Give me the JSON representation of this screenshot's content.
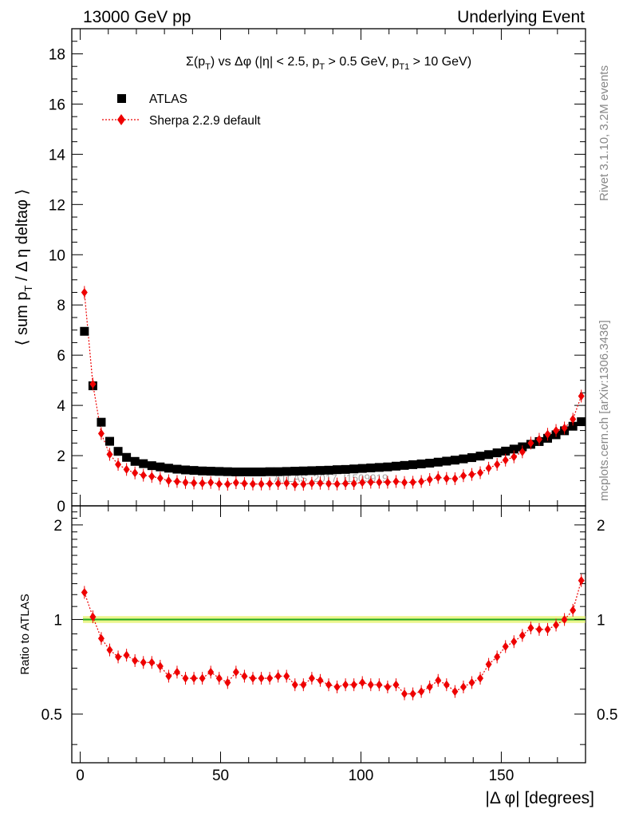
{
  "header": {
    "left_label": "13000 GeV pp",
    "right_label": "Underlying Event"
  },
  "side_labels": {
    "rivet": "Rivet 3.1.10,  3.2M events",
    "mcplots": "mcplots.cern.ch [arXiv:1306.3436]"
  },
  "watermark": "ATLAS_2017_I1509919",
  "colors": {
    "data_marker": "#000000",
    "mc_marker": "#ee0000",
    "band_fill": "#ecf58c",
    "band_line": "#22aa22"
  },
  "chart_data": [
    {
      "type": "scatter",
      "title": "Σ(pT) vs Δφ (|η| < 2.5, pT > 0.5 GeV, pT1 > 10 GeV)",
      "title_parts": {
        "a": "Σ(p",
        "a_sub": "T",
        "b": ") vs Δφ (|η| < 2.5, p",
        "b_sub": "T",
        "c": " > 0.5 GeV, p",
        "c_sub": "T1",
        "d": " > 10 GeV)"
      },
      "ylabel_parts": {
        "a": "⟨ sum p",
        "a_sub": "T",
        "b": " / Δ η deltaφ ⟩"
      },
      "xlabel": "",
      "xlim": [
        -3,
        180
      ],
      "ylim": [
        0,
        19
      ],
      "yticks": [
        0,
        2,
        4,
        6,
        8,
        10,
        12,
        14,
        16,
        18
      ],
      "ytick_labels": [
        "0",
        "2",
        "4",
        "6",
        "8",
        "10",
        "12",
        "14",
        "16",
        "18"
      ],
      "legend_position": "top-left",
      "series": [
        {
          "name": "ATLAS",
          "marker": "square",
          "x": [
            1.5,
            4.5,
            7.5,
            10.5,
            13.5,
            16.5,
            19.5,
            22.5,
            25.5,
            28.5,
            31.5,
            34.5,
            37.5,
            40.5,
            43.5,
            46.5,
            49.5,
            52.5,
            55.5,
            58.5,
            61.5,
            64.5,
            67.5,
            70.5,
            73.5,
            76.5,
            79.5,
            82.5,
            85.5,
            88.5,
            91.5,
            94.5,
            97.5,
            100.5,
            103.5,
            106.5,
            109.5,
            112.5,
            115.5,
            118.5,
            121.5,
            124.5,
            127.5,
            130.5,
            133.5,
            136.5,
            139.5,
            142.5,
            145.5,
            148.5,
            151.5,
            154.5,
            157.5,
            160.5,
            163.5,
            166.5,
            169.5,
            172.5,
            175.5,
            178.5
          ],
          "y": [
            6.95,
            4.78,
            3.33,
            2.57,
            2.17,
            1.93,
            1.77,
            1.68,
            1.6,
            1.55,
            1.5,
            1.46,
            1.43,
            1.41,
            1.39,
            1.38,
            1.37,
            1.36,
            1.35,
            1.35,
            1.35,
            1.35,
            1.36,
            1.36,
            1.37,
            1.38,
            1.39,
            1.4,
            1.41,
            1.42,
            1.44,
            1.45,
            1.47,
            1.49,
            1.51,
            1.53,
            1.55,
            1.58,
            1.61,
            1.64,
            1.67,
            1.7,
            1.74,
            1.78,
            1.82,
            1.87,
            1.92,
            1.98,
            2.04,
            2.11,
            2.18,
            2.26,
            2.35,
            2.45,
            2.56,
            2.69,
            2.83,
            2.99,
            3.17,
            3.35
          ]
        },
        {
          "name": "Sherpa 2.2.9 default",
          "marker": "diamond",
          "line": "dotted",
          "x": [
            1.5,
            4.5,
            7.5,
            10.5,
            13.5,
            16.5,
            19.5,
            22.5,
            25.5,
            28.5,
            31.5,
            34.5,
            37.5,
            40.5,
            43.5,
            46.5,
            49.5,
            52.5,
            55.5,
            58.5,
            61.5,
            64.5,
            67.5,
            70.5,
            73.5,
            76.5,
            79.5,
            82.5,
            85.5,
            88.5,
            91.5,
            94.5,
            97.5,
            100.5,
            103.5,
            106.5,
            109.5,
            112.5,
            115.5,
            118.5,
            121.5,
            124.5,
            127.5,
            130.5,
            133.5,
            136.5,
            139.5,
            142.5,
            145.5,
            148.5,
            151.5,
            154.5,
            157.5,
            160.5,
            163.5,
            166.5,
            169.5,
            172.5,
            175.5,
            178.5
          ],
          "y": [
            8.5,
            4.85,
            2.88,
            2.05,
            1.65,
            1.45,
            1.31,
            1.22,
            1.17,
            1.1,
            1.0,
            0.97,
            0.93,
            0.91,
            0.9,
            0.93,
            0.87,
            0.86,
            0.92,
            0.89,
            0.87,
            0.87,
            0.88,
            0.89,
            0.9,
            0.85,
            0.86,
            0.9,
            0.9,
            0.88,
            0.87,
            0.89,
            0.89,
            0.93,
            0.94,
            0.94,
            0.94,
            0.97,
            0.93,
            0.94,
            0.97,
            1.05,
            1.13,
            1.09,
            1.08,
            1.2,
            1.25,
            1.32,
            1.5,
            1.65,
            1.82,
            1.95,
            2.15,
            2.5,
            2.65,
            2.85,
            3.0,
            3.1,
            3.45,
            4.37
          ]
        }
      ]
    },
    {
      "type": "scatter",
      "title": "",
      "xlabel": "|Δ φ| [degrees]",
      "ylabel": "Ratio to ATLAS",
      "xlim": [
        -3,
        180
      ],
      "ylim": [
        0.35,
        2.3
      ],
      "yscale": "log",
      "xticks": [
        0,
        50,
        100,
        150
      ],
      "xtick_labels": [
        "0",
        "50",
        "100",
        "150"
      ],
      "yticks": [
        0.5,
        1,
        2
      ],
      "ytick_labels": [
        "0.5",
        "1",
        "2"
      ],
      "reference_band": {
        "y": 1.0,
        "low": 0.975,
        "high": 1.025
      },
      "series": [
        {
          "name": "Sherpa 2.2.9 default / ATLAS",
          "marker": "diamond",
          "line": "dotted",
          "x": [
            1.5,
            4.5,
            7.5,
            10.5,
            13.5,
            16.5,
            19.5,
            22.5,
            25.5,
            28.5,
            31.5,
            34.5,
            37.5,
            40.5,
            43.5,
            46.5,
            49.5,
            52.5,
            55.5,
            58.5,
            61.5,
            64.5,
            67.5,
            70.5,
            73.5,
            76.5,
            79.5,
            82.5,
            85.5,
            88.5,
            91.5,
            94.5,
            97.5,
            100.5,
            103.5,
            106.5,
            109.5,
            112.5,
            115.5,
            118.5,
            121.5,
            124.5,
            127.5,
            130.5,
            133.5,
            136.5,
            139.5,
            142.5,
            145.5,
            148.5,
            151.5,
            154.5,
            157.5,
            160.5,
            163.5,
            166.5,
            169.5,
            172.5,
            175.5,
            178.5
          ],
          "y": [
            1.22,
            1.02,
            0.87,
            0.8,
            0.76,
            0.77,
            0.74,
            0.73,
            0.73,
            0.71,
            0.66,
            0.68,
            0.65,
            0.65,
            0.65,
            0.68,
            0.65,
            0.63,
            0.68,
            0.66,
            0.65,
            0.65,
            0.65,
            0.66,
            0.66,
            0.62,
            0.62,
            0.65,
            0.64,
            0.62,
            0.61,
            0.62,
            0.62,
            0.63,
            0.62,
            0.62,
            0.61,
            0.62,
            0.58,
            0.58,
            0.59,
            0.61,
            0.64,
            0.62,
            0.59,
            0.61,
            0.63,
            0.65,
            0.72,
            0.76,
            0.82,
            0.85,
            0.89,
            0.94,
            0.93,
            0.93,
            0.96,
            1.0,
            1.07,
            1.33
          ]
        }
      ]
    }
  ]
}
